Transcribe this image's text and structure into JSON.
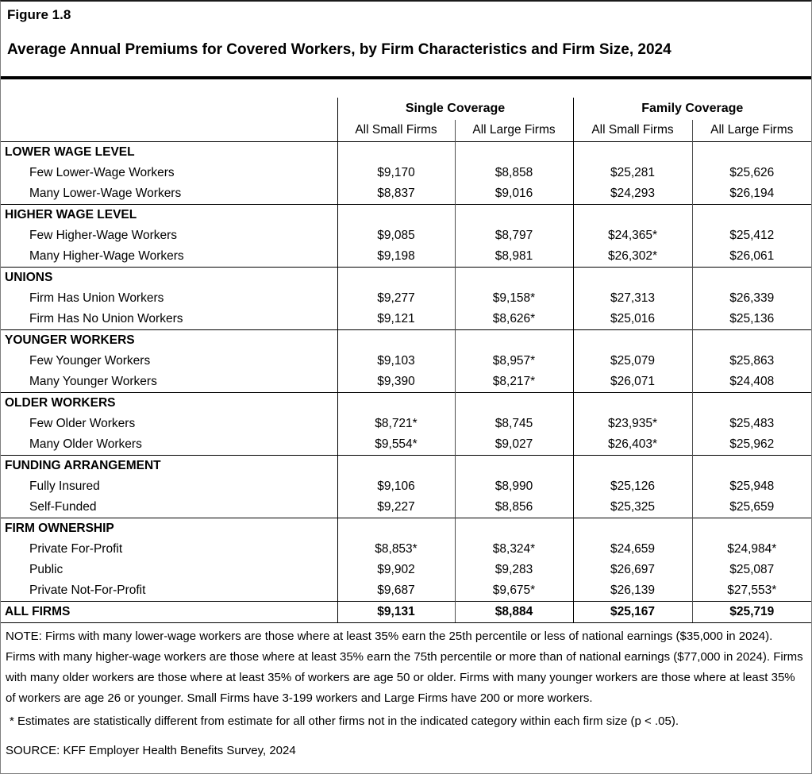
{
  "figure": {
    "label": "Figure 1.8",
    "title": "Average Annual Premiums for Covered Workers, by Firm Characteristics and Firm Size, 2024"
  },
  "table": {
    "col_groups": [
      {
        "label": "Single Coverage"
      },
      {
        "label": "Family Coverage"
      }
    ],
    "sub_headers": [
      "All Small Firms",
      "All Large Firms",
      "All Small Firms",
      "All Large Firms"
    ],
    "sections": [
      {
        "header": "LOWER WAGE LEVEL",
        "rows": [
          {
            "label": "Few Lower-Wage Workers",
            "values": [
              "$9,170",
              "$8,858",
              "$25,281",
              "$25,626"
            ]
          },
          {
            "label": "Many Lower-Wage Workers",
            "values": [
              "$8,837",
              "$9,016",
              "$24,293",
              "$26,194"
            ]
          }
        ]
      },
      {
        "header": "HIGHER WAGE LEVEL",
        "rows": [
          {
            "label": "Few Higher-Wage Workers",
            "values": [
              "$9,085",
              "$8,797",
              "$24,365*",
              "$25,412"
            ]
          },
          {
            "label": "Many Higher-Wage Workers",
            "values": [
              "$9,198",
              "$8,981",
              "$26,302*",
              "$26,061"
            ]
          }
        ]
      },
      {
        "header": "UNIONS",
        "rows": [
          {
            "label": "Firm Has Union Workers",
            "values": [
              "$9,277",
              "$9,158*",
              "$27,313",
              "$26,339"
            ]
          },
          {
            "label": "Firm Has No Union Workers",
            "values": [
              "$9,121",
              "$8,626*",
              "$25,016",
              "$25,136"
            ]
          }
        ]
      },
      {
        "header": "YOUNGER WORKERS",
        "rows": [
          {
            "label": "Few Younger Workers",
            "values": [
              "$9,103",
              "$8,957*",
              "$25,079",
              "$25,863"
            ]
          },
          {
            "label": "Many Younger Workers",
            "values": [
              "$9,390",
              "$8,217*",
              "$26,071",
              "$24,408"
            ]
          }
        ]
      },
      {
        "header": "OLDER WORKERS",
        "rows": [
          {
            "label": "Few Older Workers",
            "values": [
              "$8,721*",
              "$8,745",
              "$23,935*",
              "$25,483"
            ]
          },
          {
            "label": "Many Older Workers",
            "values": [
              "$9,554*",
              "$9,027",
              "$26,403*",
              "$25,962"
            ]
          }
        ]
      },
      {
        "header": "FUNDING ARRANGEMENT",
        "rows": [
          {
            "label": "Fully Insured",
            "values": [
              "$9,106",
              "$8,990",
              "$25,126",
              "$25,948"
            ]
          },
          {
            "label": "Self-Funded",
            "values": [
              "$9,227",
              "$8,856",
              "$25,325",
              "$25,659"
            ]
          }
        ]
      },
      {
        "header": "FIRM OWNERSHIP",
        "rows": [
          {
            "label": "Private For-Profit",
            "values": [
              "$8,853*",
              "$8,324*",
              "$24,659",
              "$24,984*"
            ]
          },
          {
            "label": "Public",
            "values": [
              "$9,902",
              "$9,283",
              "$26,697",
              "$25,087"
            ]
          },
          {
            "label": "Private Not-For-Profit",
            "values": [
              "$9,687",
              "$9,675*",
              "$26,139",
              "$27,553*"
            ]
          }
        ]
      }
    ],
    "total_row": {
      "label": "ALL FIRMS",
      "values": [
        "$9,131",
        "$8,884",
        "$25,167",
        "$25,719"
      ]
    }
  },
  "notes": {
    "note": "NOTE: Firms with many lower-wage workers are those where at least 35% earn the 25th percentile or less of national earnings ($35,000 in 2024). Firms with many higher-wage workers are those where at least 35% earn the 75th percentile or more than of national earnings ($77,000 in 2024). Firms with many older workers are those where at least 35% of workers are age 50 or older. Firms with many younger workers are those where at least 35% of workers are age 26 or younger. Small Firms have 3-199 workers and Large Firms have 200 or more workers.",
    "footnote": "* Estimates are statistically different from estimate for all other firms not in the indicated category within each firm size (p < .05).",
    "source": "SOURCE: KFF Employer Health Benefits Survey, 2024"
  }
}
